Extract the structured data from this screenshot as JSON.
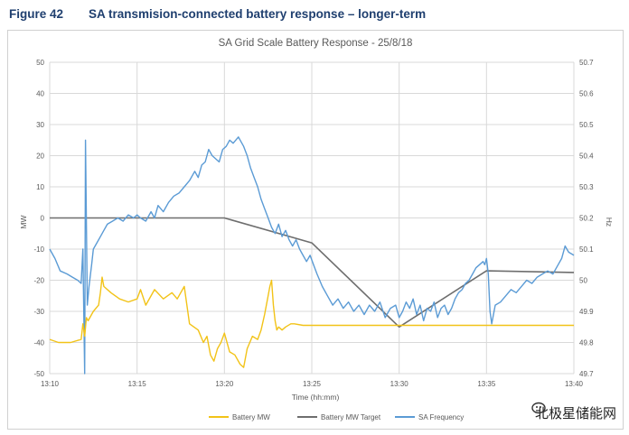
{
  "figure": {
    "number": "Figure 42",
    "title": "SA transmision-connected battery response – longer-term"
  },
  "watermark": {
    "text": "北极星储能网"
  },
  "colors": {
    "battery": "#F2C318",
    "target": "#6E6E6E",
    "frequency": "#5B9BD5",
    "grid": "#D9D9D9"
  },
  "chart_data": {
    "type": "line",
    "title": "SA Grid Scale Battery Response - 25/8/18",
    "xlabel": "Time (hh:mm)",
    "ylabel": "MW",
    "y2label": "Hz",
    "xlim": [
      0,
      30
    ],
    "ylim": [
      -50,
      50
    ],
    "y2lim": [
      49.7,
      50.7
    ],
    "x_ticks": [
      {
        "v": 0,
        "label": "13:10"
      },
      {
        "v": 5,
        "label": "13:15"
      },
      {
        "v": 10,
        "label": "13:20"
      },
      {
        "v": 15,
        "label": "13:25"
      },
      {
        "v": 20,
        "label": "13:30"
      },
      {
        "v": 25,
        "label": "13:35"
      },
      {
        "v": 30,
        "label": "13:40"
      }
    ],
    "y_ticks": [
      50,
      40,
      30,
      20,
      10,
      0,
      -10,
      -20,
      -30,
      -40,
      -50
    ],
    "y2_ticks": [
      "50.7",
      "50.6",
      "50.5",
      "50.4",
      "50.3",
      "50.2",
      "50.1",
      "50",
      "49.9",
      "49.8",
      "49.7"
    ],
    "series": [
      {
        "name": "Battery MW",
        "axis": "left",
        "x": [
          0,
          0.5,
          1.2,
          1.8,
          1.9,
          2.0,
          2.1,
          2.2,
          2.5,
          2.8,
          2.9,
          3.0,
          3.1,
          3.5,
          4,
          4.5,
          5,
          5.2,
          5.5,
          6,
          6.5,
          7,
          7.3,
          7.5,
          7.7,
          8,
          8.5,
          8.8,
          9,
          9.2,
          9.4,
          9.6,
          9.8,
          10,
          10.3,
          10.6,
          10.9,
          11.1,
          11.3,
          11.6,
          11.9,
          12.1,
          12.3,
          12.5,
          12.6,
          12.7,
          12.8,
          12.9,
          13.0,
          13.1,
          13.3,
          13.5,
          13.8,
          14,
          14.5,
          15,
          16,
          18,
          20,
          22,
          24,
          26,
          28,
          30
        ],
        "values": [
          -39,
          -40,
          -40,
          -39,
          -34,
          -38,
          -32,
          -33,
          -30,
          -28,
          -24,
          -19,
          -22,
          -24,
          -26,
          -27,
          -26,
          -23,
          -28,
          -23,
          -26,
          -24,
          -26,
          -24,
          -22,
          -34,
          -36,
          -40,
          -38,
          -44,
          -46,
          -42,
          -40,
          -37,
          -43,
          -44,
          -47,
          -48,
          -42,
          -38,
          -39,
          -36,
          -31,
          -25,
          -22,
          -20,
          -28,
          -33,
          -36,
          -35,
          -36,
          -35,
          -34,
          -34,
          -34.5,
          -34.5,
          -34.5,
          -34.5,
          -34.5,
          -34.5,
          -34.5,
          -34.5,
          -34.5,
          -34.5
        ]
      },
      {
        "name": "Battery MW Target",
        "axis": "left",
        "x": [
          0,
          10,
          15,
          20,
          25,
          30
        ],
        "values": [
          0,
          0,
          -8,
          -35,
          -17,
          -17.5
        ]
      },
      {
        "name": "SA Frequency",
        "axis": "right",
        "x": [
          0,
          0.3,
          0.6,
          1.0,
          1.3,
          1.6,
          1.8,
          1.9,
          2.0,
          2.05,
          2.15,
          2.25,
          2.4,
          2.5,
          2.7,
          2.9,
          3.1,
          3.3,
          3.6,
          3.9,
          4.2,
          4.5,
          4.8,
          5.0,
          5.2,
          5.5,
          5.8,
          6.0,
          6.2,
          6.5,
          6.8,
          7.1,
          7.4,
          7.7,
          8.0,
          8.3,
          8.5,
          8.7,
          8.9,
          9.1,
          9.3,
          9.5,
          9.7,
          9.9,
          10.1,
          10.3,
          10.5,
          10.8,
          11.1,
          11.3,
          11.5,
          11.7,
          11.9,
          12.1,
          12.3,
          12.5,
          12.7,
          12.9,
          13.1,
          13.3,
          13.5,
          13.7,
          13.9,
          14.1,
          14.3,
          14.5,
          14.7,
          14.9,
          15.1,
          15.3,
          15.6,
          15.9,
          16.2,
          16.5,
          16.8,
          17.1,
          17.4,
          17.7,
          18.0,
          18.3,
          18.6,
          18.9,
          19.2,
          19.5,
          19.8,
          20.0,
          20.2,
          20.4,
          20.6,
          20.8,
          21.0,
          21.2,
          21.4,
          21.6,
          21.8,
          22.0,
          22.2,
          22.4,
          22.6,
          22.8,
          23.0,
          23.2,
          23.4,
          23.6,
          23.8,
          24.0,
          24.2,
          24.4,
          24.6,
          24.8,
          24.9,
          25.0,
          25.1,
          25.2,
          25.3,
          25.5,
          25.8,
          26.1,
          26.4,
          26.7,
          27.0,
          27.3,
          27.6,
          27.9,
          28.2,
          28.5,
          28.8,
          29.1,
          29.3,
          29.5,
          29.7,
          30.0
        ],
        "values": [
          50.1,
          50.07,
          50.03,
          50.02,
          50.01,
          50.0,
          49.99,
          50.1,
          49.7,
          50.45,
          49.92,
          49.98,
          50.05,
          50.1,
          50.12,
          50.14,
          50.16,
          50.18,
          50.19,
          50.2,
          50.19,
          50.21,
          50.2,
          50.21,
          50.2,
          50.19,
          50.22,
          50.2,
          50.24,
          50.22,
          50.25,
          50.27,
          50.28,
          50.3,
          50.32,
          50.35,
          50.33,
          50.37,
          50.38,
          50.42,
          50.4,
          50.39,
          50.38,
          50.42,
          50.43,
          50.45,
          50.44,
          50.46,
          50.43,
          50.4,
          50.36,
          50.33,
          50.3,
          50.26,
          50.23,
          50.2,
          50.17,
          50.15,
          50.18,
          50.14,
          50.16,
          50.13,
          50.11,
          50.13,
          50.1,
          50.08,
          50.06,
          50.08,
          50.05,
          50.02,
          49.98,
          49.95,
          49.92,
          49.94,
          49.91,
          49.93,
          49.9,
          49.92,
          49.89,
          49.92,
          49.9,
          49.93,
          49.88,
          49.91,
          49.92,
          49.88,
          49.9,
          49.93,
          49.91,
          49.94,
          49.89,
          49.92,
          49.87,
          49.91,
          49.9,
          49.93,
          49.88,
          49.91,
          49.92,
          49.89,
          49.91,
          49.94,
          49.96,
          49.97,
          49.99,
          50.0,
          50.02,
          50.04,
          50.05,
          50.06,
          50.05,
          50.07,
          50.02,
          49.9,
          49.86,
          49.92,
          49.93,
          49.95,
          49.97,
          49.96,
          49.98,
          50.0,
          49.99,
          50.01,
          50.02,
          50.03,
          50.02,
          50.05,
          50.07,
          50.11,
          50.09,
          50.08
        ]
      }
    ],
    "legend_position": "bottom"
  }
}
